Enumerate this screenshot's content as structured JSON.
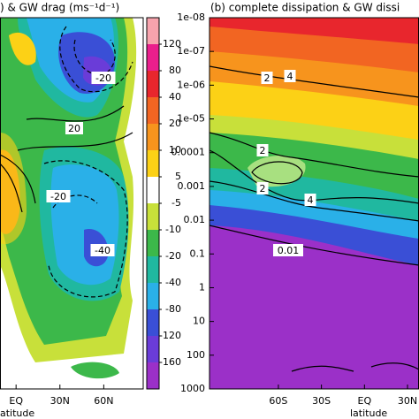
{
  "chart_data": [
    {
      "type": "contour",
      "title": ") & GW drag (ms⁻¹d⁻¹)",
      "x_label": "atitude",
      "xlim": [
        -11,
        87
      ],
      "xticks": [
        {
          "value": 0,
          "label": "EQ"
        },
        {
          "value": 30,
          "label": "30N"
        },
        {
          "value": 60,
          "label": "60N"
        }
      ],
      "contour_labels": [
        "-20",
        "20",
        "-20",
        "-40"
      ],
      "colorbar": {
        "levels": [
          120,
          80,
          40,
          20,
          10,
          5,
          -5,
          -10,
          -20,
          -40,
          -80,
          -120,
          -160
        ],
        "colors": [
          "#f7a3ad",
          "#ea1f8c",
          "#e8262d",
          "#f26522",
          "#f7941d",
          "#fcd116",
          "#ffffff",
          "#c8e03a",
          "#3cb84a",
          "#20b8a0",
          "#2ab0e8",
          "#3a4fd6",
          "#6a3cd8",
          "#9b30c8"
        ]
      }
    },
    {
      "type": "contour",
      "title": "(b) complete dissipation & GW dissi",
      "x_label": "latitude",
      "xlim": [
        -108,
        38
      ],
      "xticks": [
        {
          "value": -60,
          "label": "60S"
        },
        {
          "value": -30,
          "label": "30S"
        },
        {
          "value": 0,
          "label": "EQ"
        },
        {
          "value": 30,
          "label": "30N"
        }
      ],
      "ylim": [
        1e-08,
        1000
      ],
      "y_log": true,
      "y_inverted": true,
      "yticks": [
        {
          "value": 1e-08,
          "label": "1e-08"
        },
        {
          "value": 1e-07,
          "label": "1e-07"
        },
        {
          "value": 1e-06,
          "label": "1e-06"
        },
        {
          "value": 1e-05,
          "label": "1e-05"
        },
        0.0001,
        0.001,
        0.01,
        0.1,
        1,
        10,
        100,
        1000
      ],
      "contour_labels": [
        "2",
        "4",
        "2",
        "2",
        "4",
        "0.01"
      ]
    }
  ]
}
